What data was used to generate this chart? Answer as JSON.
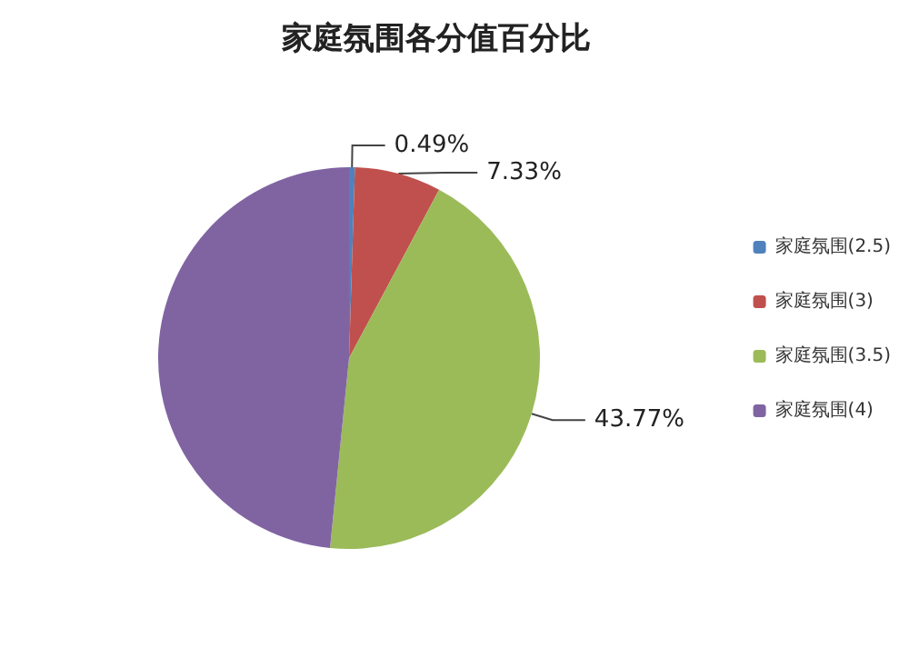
{
  "chart_data": {
    "type": "pie",
    "title": "家庭氛围各分值百分比",
    "categories": [
      "家庭氛围(2.5)",
      "家庭氛围(3)",
      "家庭氛围(3.5)",
      "家庭氛围(4)"
    ],
    "values": [
      0.49,
      7.33,
      43.77,
      48.41
    ],
    "colors": [
      "#4f81bd",
      "#c0504d",
      "#9bbb59",
      "#8064a2"
    ],
    "value_labels": [
      "0.49%",
      "7.33%",
      "43.77%",
      null
    ],
    "legend": "right"
  }
}
